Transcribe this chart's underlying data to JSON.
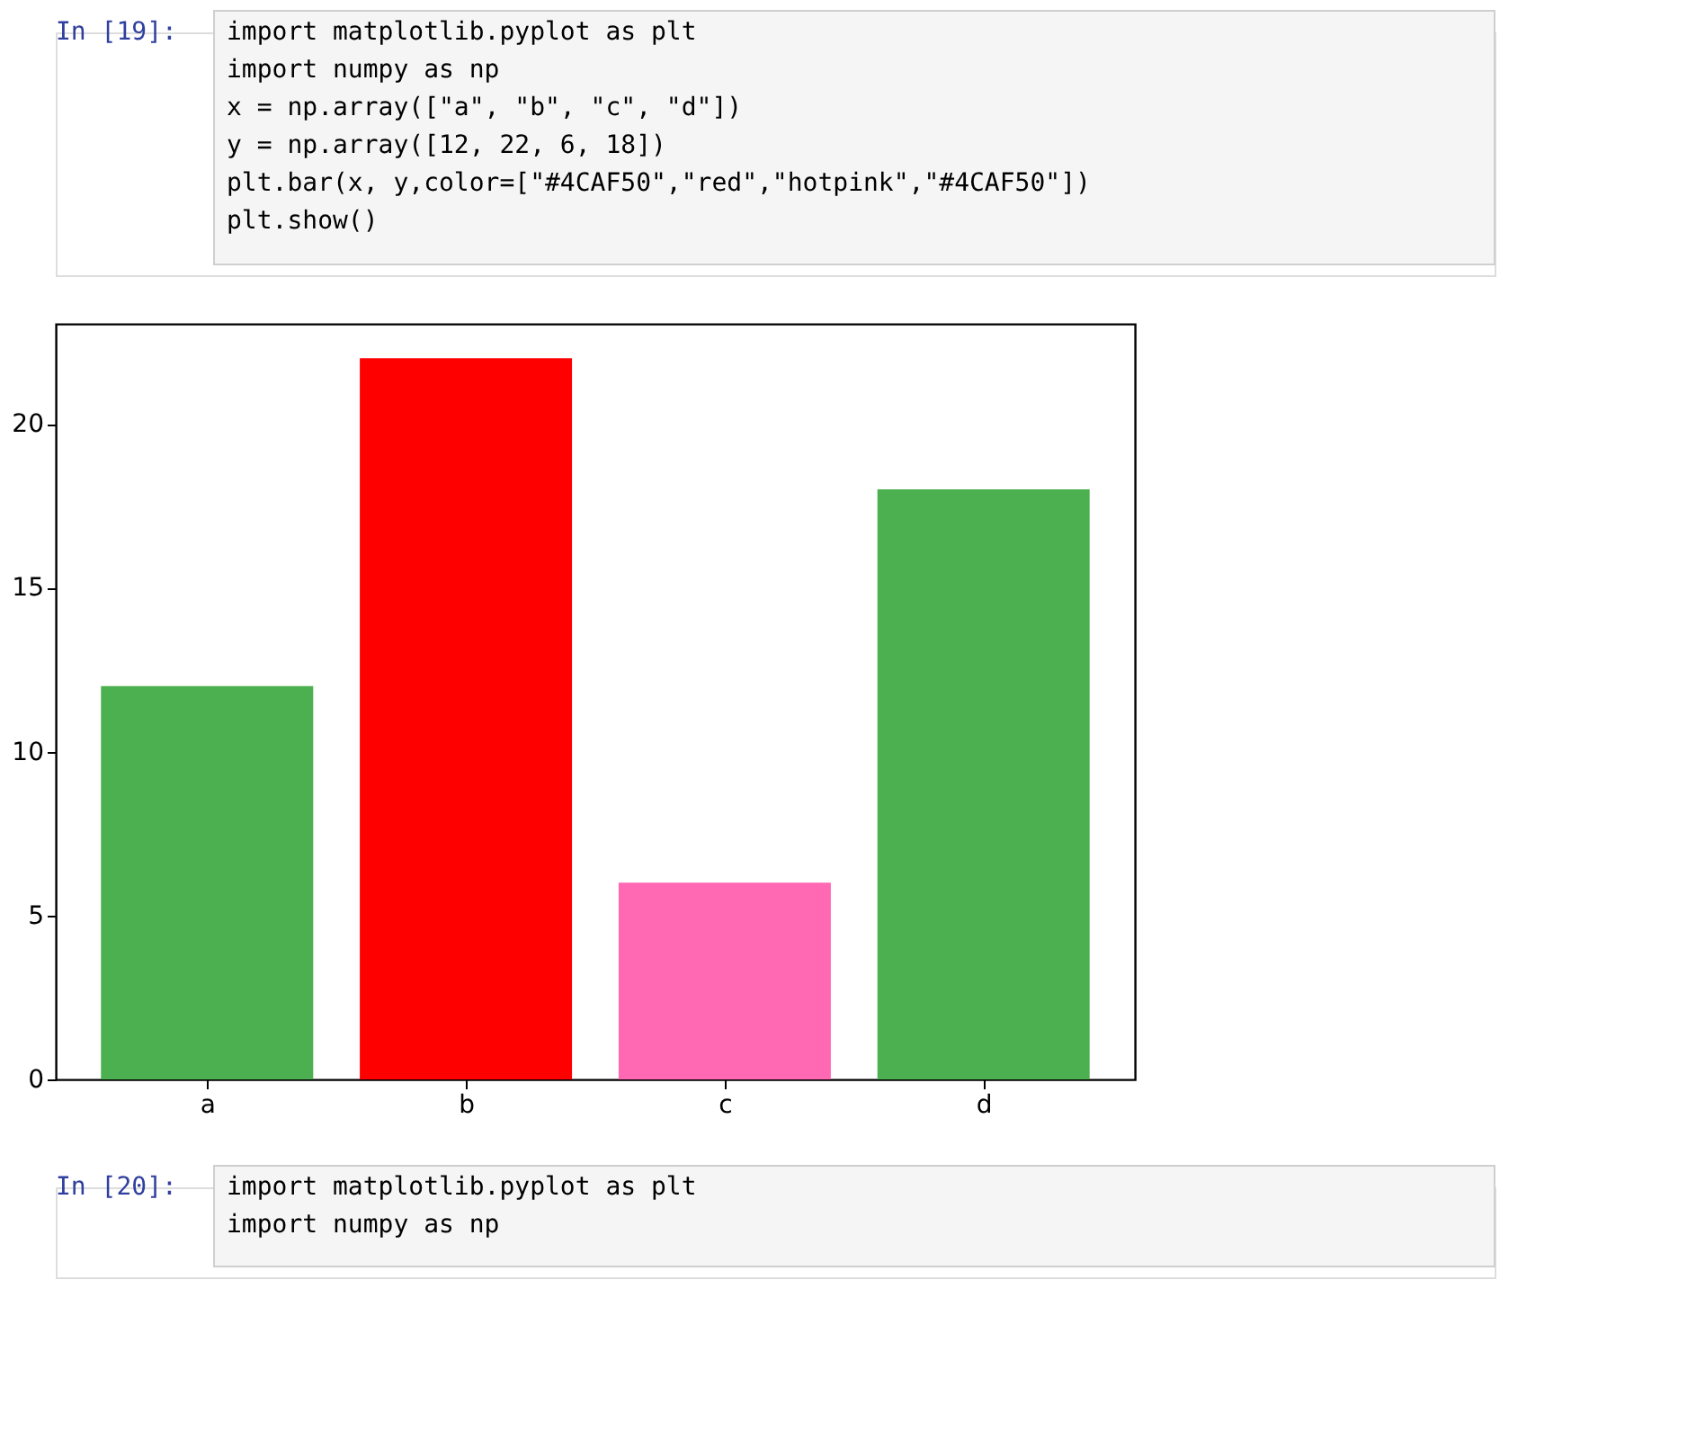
{
  "chart_data": {
    "type": "bar",
    "categories": [
      "a",
      "b",
      "c",
      "d"
    ],
    "values": [
      12,
      22,
      6,
      18
    ],
    "colors": [
      "#4caf50",
      "#ff0000",
      "#ff69b4",
      "#4caf50"
    ],
    "ylim": [
      0,
      23.05
    ],
    "yticks": [
      0,
      5,
      10,
      15,
      20
    ],
    "grid": false,
    "annotations": [
      "In [19]:",
      "import matplotlib.pyplot as plt",
      "import numpy as np",
      "x = np.array([\"a\", \"b\", \"c\", \"d\"])",
      "y = np.array([12, 22, 6, 18])",
      "plt.bar(x, y,color=[\"#4CAF50\",\"red\",\"hotpink\",\"#4CAF50\"])",
      "plt.show()",
      "In [20]:",
      "import matplotlib.pyplot as plt",
      "import numpy as np"
    ]
  }
}
